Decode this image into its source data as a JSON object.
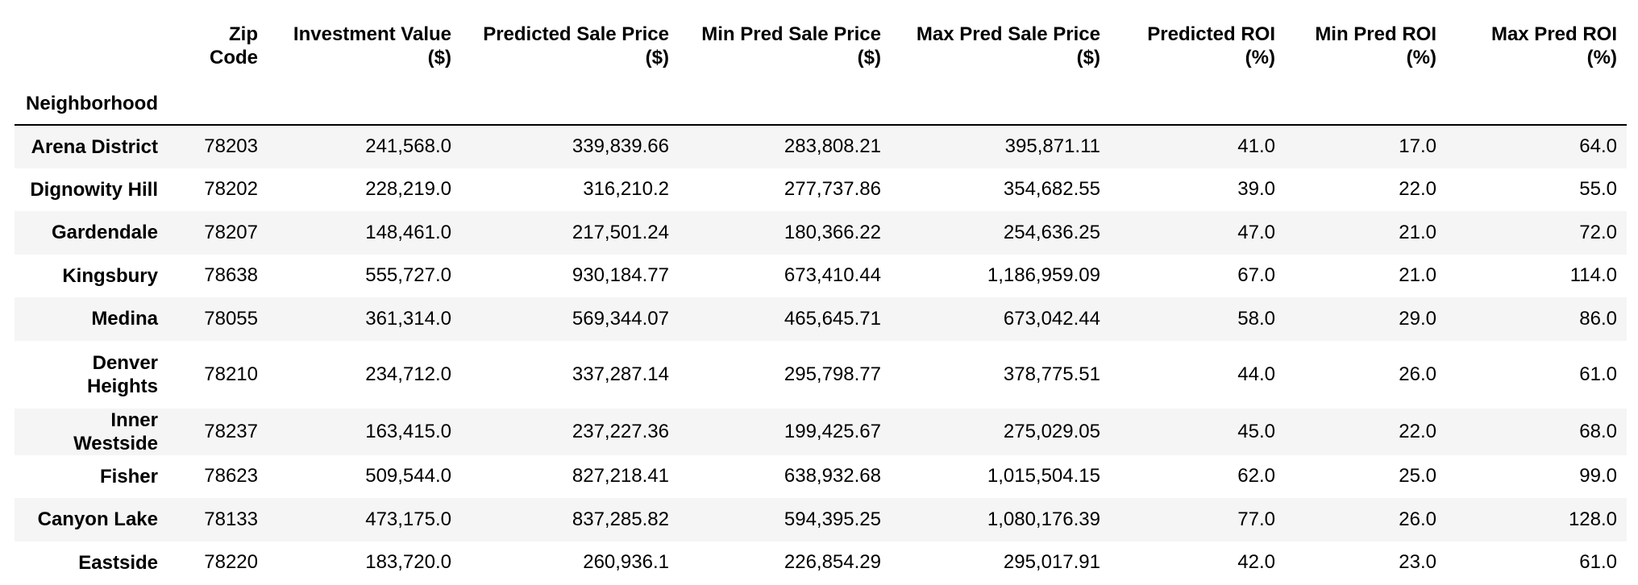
{
  "table": {
    "index_name": "Neighborhood",
    "columns": [
      "Zip Code",
      "Investment Value ($)",
      "Predicted Sale Price ($)",
      "Min Pred Sale Price ($)",
      "Max Pred Sale Price ($)",
      "Predicted ROI (%)",
      "Min Pred ROI (%)",
      "Max Pred ROI (%)"
    ],
    "rows": [
      {
        "name": "Arena District",
        "values": [
          "78203",
          "241,568.0",
          "339,839.66",
          "283,808.21",
          "395,871.11",
          "41.0",
          "17.0",
          "64.0"
        ]
      },
      {
        "name": "Dignowity Hill",
        "values": [
          "78202",
          "228,219.0",
          "316,210.2",
          "277,737.86",
          "354,682.55",
          "39.0",
          "22.0",
          "55.0"
        ]
      },
      {
        "name": "Gardendale",
        "values": [
          "78207",
          "148,461.0",
          "217,501.24",
          "180,366.22",
          "254,636.25",
          "47.0",
          "21.0",
          "72.0"
        ]
      },
      {
        "name": "Kingsbury",
        "values": [
          "78638",
          "555,727.0",
          "930,184.77",
          "673,410.44",
          "1,186,959.09",
          "67.0",
          "21.0",
          "114.0"
        ]
      },
      {
        "name": "Medina",
        "values": [
          "78055",
          "361,314.0",
          "569,344.07",
          "465,645.71",
          "673,042.44",
          "58.0",
          "29.0",
          "86.0"
        ]
      },
      {
        "name": "Denver Heights",
        "values": [
          "78210",
          "234,712.0",
          "337,287.14",
          "295,798.77",
          "378,775.51",
          "44.0",
          "26.0",
          "61.0"
        ]
      },
      {
        "name": "Inner Westside",
        "values": [
          "78237",
          "163,415.0",
          "237,227.36",
          "199,425.67",
          "275,029.05",
          "45.0",
          "22.0",
          "68.0"
        ]
      },
      {
        "name": "Fisher",
        "values": [
          "78623",
          "509,544.0",
          "827,218.41",
          "638,932.68",
          "1,015,504.15",
          "62.0",
          "25.0",
          "99.0"
        ]
      },
      {
        "name": "Canyon Lake",
        "values": [
          "78133",
          "473,175.0",
          "837,285.82",
          "594,395.25",
          "1,080,176.39",
          "77.0",
          "26.0",
          "128.0"
        ]
      },
      {
        "name": "Eastside",
        "values": [
          "78220",
          "183,720.0",
          "260,936.1",
          "226,854.29",
          "295,017.91",
          "42.0",
          "23.0",
          "61.0"
        ]
      }
    ]
  }
}
